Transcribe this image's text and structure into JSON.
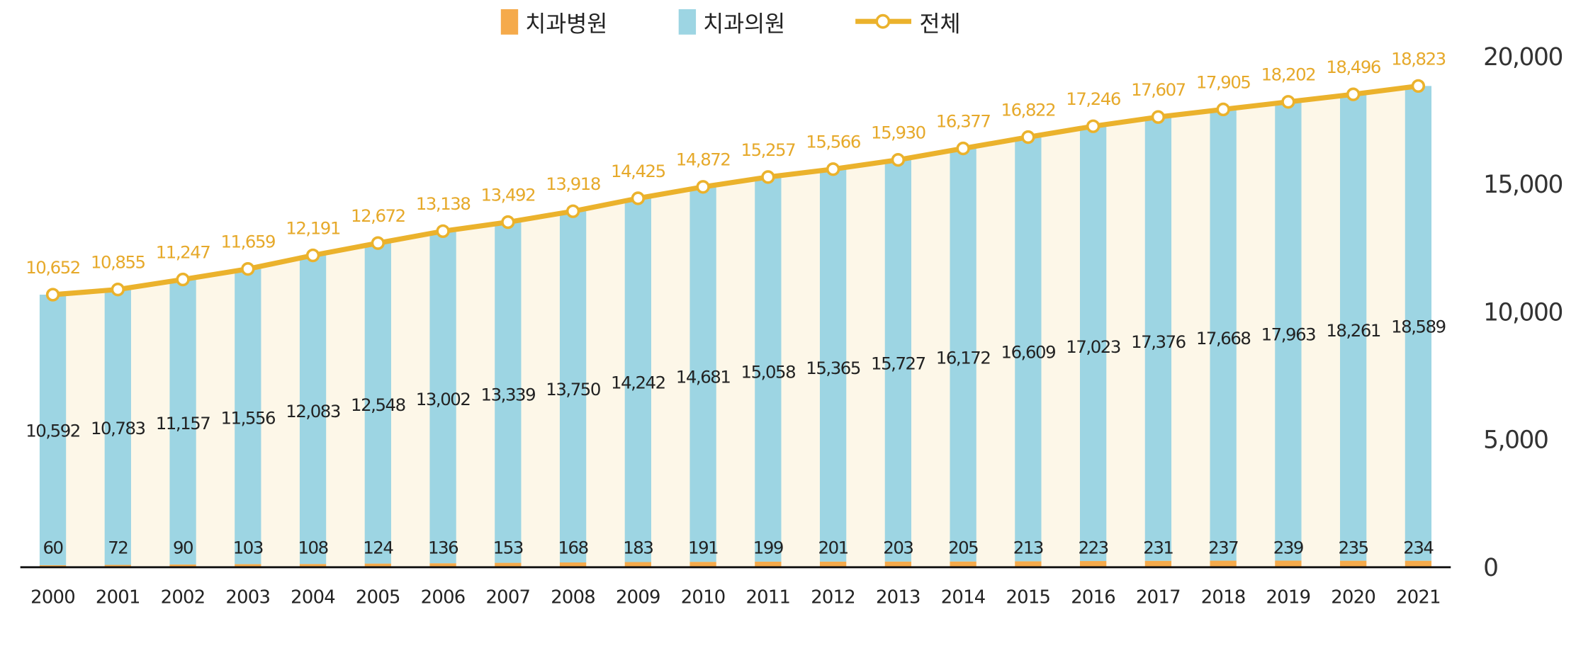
{
  "chart_data": {
    "type": "bar",
    "stacked": true,
    "categories": [
      "2000",
      "2001",
      "2002",
      "2003",
      "2004",
      "2005",
      "2006",
      "2007",
      "2008",
      "2009",
      "2010",
      "2011",
      "2012",
      "2013",
      "2014",
      "2015",
      "2016",
      "2017",
      "2018",
      "2019",
      "2020",
      "2021"
    ],
    "series": [
      {
        "name": "치과병원",
        "type": "bar",
        "color": "#f5aa4b",
        "values": [
          60,
          72,
          90,
          103,
          108,
          124,
          136,
          153,
          168,
          183,
          191,
          199,
          201,
          203,
          205,
          213,
          223,
          231,
          237,
          239,
          235,
          234
        ]
      },
      {
        "name": "치과의원",
        "type": "bar",
        "color": "#9dd5e3",
        "values": [
          10592,
          10783,
          11157,
          11556,
          12083,
          12548,
          13002,
          13339,
          13750,
          14242,
          14681,
          15058,
          15365,
          15727,
          16172,
          16609,
          17023,
          17376,
          17668,
          17963,
          18261,
          18589
        ]
      },
      {
        "name": "전체",
        "type": "line",
        "color": "#ebb22c",
        "area_fill": "#fdf7e8",
        "values": [
          10652,
          10855,
          11247,
          11659,
          12191,
          12672,
          13138,
          13492,
          13918,
          14425,
          14872,
          15257,
          15566,
          15930,
          16377,
          16822,
          17246,
          17607,
          17905,
          18202,
          18496,
          18823
        ]
      }
    ],
    "y_ticks": [
      "0",
      "5,000",
      "10,000",
      "15,000",
      "20,000"
    ],
    "ylim": [
      0,
      20000
    ],
    "y_axis_side": "right",
    "grid": false,
    "legend_placement": "top-center"
  }
}
